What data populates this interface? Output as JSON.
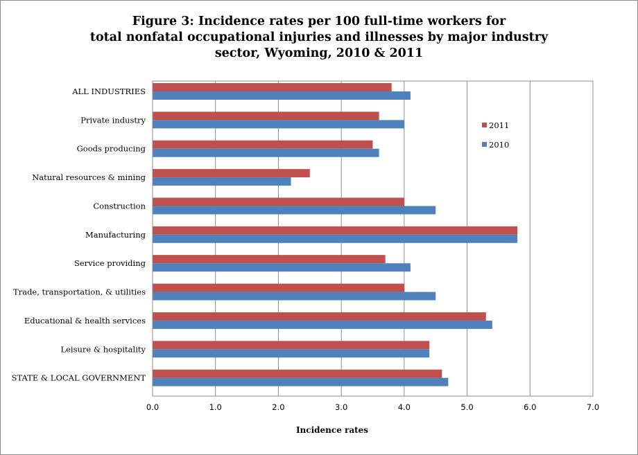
{
  "chart_data": {
    "type": "bar",
    "orientation": "horizontal",
    "title_lines": [
      "Figure 3: Incidence rates per 100 full-time workers for",
      "total nonfatal occupational injuries and illnesses by major industry",
      "sector, Wyoming, 2010 & 2011"
    ],
    "xlabel": "Incidence rates",
    "ylabel": "",
    "xlim": [
      0,
      7
    ],
    "x_ticks": [
      "0.0",
      "1.0",
      "2.0",
      "3.0",
      "4.0",
      "5.0",
      "6.0",
      "7.0"
    ],
    "grid": "vertical major gridlines",
    "legend_position": "right",
    "categories": [
      "ALL INDUSTRIES",
      "Private industry",
      "Goods producing",
      "Natural resources & mining",
      "Construction",
      "Manufacturing",
      "Service providing",
      "Trade, transportation, & utilities",
      "Educational & health services",
      "Leisure & hospitality",
      "STATE & LOCAL GOVERNMENT"
    ],
    "series": [
      {
        "name": "2011",
        "color": "#c0504d",
        "values": [
          3.8,
          3.6,
          3.5,
          2.5,
          4.0,
          5.8,
          3.7,
          4.0,
          5.3,
          4.4,
          4.6
        ]
      },
      {
        "name": "2010",
        "color": "#4f81bd",
        "values": [
          4.1,
          4.0,
          3.6,
          2.2,
          4.5,
          5.8,
          4.1,
          4.5,
          5.4,
          4.4,
          4.7
        ]
      }
    ]
  }
}
